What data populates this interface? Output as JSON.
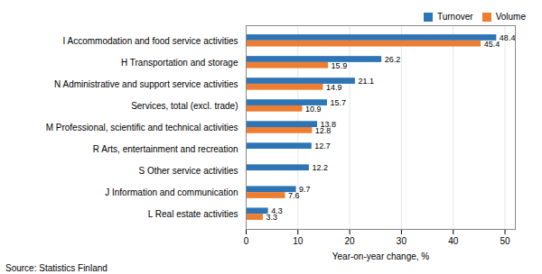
{
  "chart_data": {
    "type": "bar",
    "orientation": "horizontal",
    "categories": [
      "L Real estate activities",
      "J Information and communication",
      "S Other service activities",
      "R Arts, entertainment and recreation",
      "M Professional, scientific and technical activities",
      "Services, total (excl. trade)",
      "N Administrative and support service activities",
      "H Transportation and storage",
      "I Accommodation and food service activities"
    ],
    "series": [
      {
        "name": "Turnover",
        "color": "#2e75b6",
        "values": [
          4.3,
          9.7,
          12.2,
          12.7,
          13.8,
          15.7,
          21.1,
          26.2,
          48.4
        ]
      },
      {
        "name": "Volume",
        "color": "#ed7d31",
        "values": [
          3.3,
          7.6,
          null,
          null,
          12.8,
          10.9,
          14.9,
          15.9,
          45.4
        ]
      }
    ],
    "xlabel": "Year-on-year change, %",
    "xlim": [
      0,
      52
    ],
    "xticks": [
      0,
      10,
      20,
      30,
      40,
      50
    ],
    "grid": true,
    "legend": "right",
    "data_labels": true,
    "caption": "Source: Statistics Finland"
  }
}
